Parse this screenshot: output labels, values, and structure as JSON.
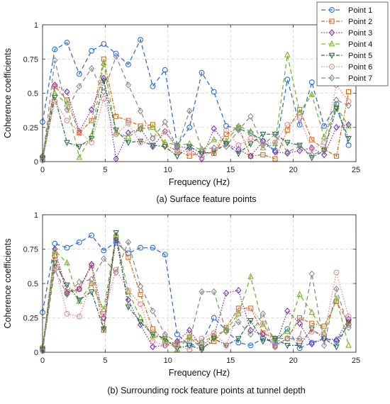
{
  "chart_data": [
    {
      "type": "line",
      "caption": "(a) Surface feature points",
      "xlabel": "Frequency (Hz)",
      "ylabel": "Coherence coefficients",
      "xlim": [
        0,
        25
      ],
      "ylim": [
        0,
        1
      ],
      "xticks": [
        "0",
        "5",
        "10",
        "15",
        "20",
        "25"
      ],
      "yticks": [
        "0",
        "0.25",
        "0.5",
        "0.75",
        "1"
      ],
      "grid": true,
      "legend": "top-right",
      "x": [
        0,
        0.98,
        1.95,
        2.93,
        3.91,
        4.88,
        5.86,
        6.84,
        7.81,
        8.79,
        9.77,
        10.74,
        11.72,
        12.7,
        13.67,
        14.65,
        15.63,
        16.6,
        17.58,
        18.55,
        19.53,
        20.51,
        21.48,
        22.46,
        23.44,
        24.41
      ],
      "series": [
        {
          "name": "Point 1",
          "color": "#2f6fd6",
          "dash": "6,4",
          "marker": "circle",
          "values": [
            0.29,
            0.82,
            0.87,
            0.64,
            0.81,
            0.86,
            0.79,
            0.71,
            0.89,
            0.55,
            0.67,
            0.12,
            0.25,
            0.65,
            0.51,
            0.26,
            0.24,
            0.21,
            0.15,
            0.08,
            0.6,
            0.27,
            0.58,
            0.26,
            0.42,
            0.12
          ]
        },
        {
          "name": "Point 2",
          "color": "#d46a1c",
          "dash": "5,2,1.5,2",
          "marker": "square",
          "values": [
            0.03,
            0.55,
            0.45,
            0.21,
            0.3,
            0.75,
            0.33,
            0.3,
            0.26,
            0.27,
            0.12,
            0.08,
            0.04,
            0.07,
            0.06,
            0.2,
            0.25,
            0.04,
            0.05,
            0.02,
            0.23,
            0.38,
            0.16,
            0.09,
            0.04,
            0.51
          ]
        },
        {
          "name": "Point 3",
          "color": "#7a2fb8",
          "dash": "1.5,2",
          "marker": "diamond",
          "values": [
            0.04,
            0.56,
            0.51,
            0.22,
            0.38,
            0.61,
            0.02,
            0.21,
            0.24,
            0.11,
            0.22,
            0.11,
            0.1,
            0.02,
            0.24,
            0.13,
            0.09,
            0.04,
            0.15,
            0.07,
            0.06,
            0.08,
            0.1,
            0.05,
            0.25,
            0.27
          ]
        },
        {
          "name": "Point 4",
          "color": "#7ab530",
          "dash": "6,4",
          "marker": "triangle-up",
          "values": [
            0.04,
            0.5,
            0.42,
            0.03,
            0.19,
            0.72,
            0.21,
            0.18,
            0.24,
            0.25,
            0.14,
            0.12,
            0.13,
            0.08,
            0.16,
            0.15,
            0.26,
            0.22,
            0.1,
            0.13,
            0.78,
            0.36,
            0.49,
            0.18,
            0.4,
            0.26
          ]
        },
        {
          "name": "Point 5",
          "color": "#2e6b4a",
          "dash": "5,2,1.5,2",
          "marker": "triangle-down",
          "values": [
            0.02,
            0.47,
            0.14,
            0.11,
            0.17,
            0.59,
            0.23,
            0.14,
            0.15,
            0.12,
            0.11,
            0.04,
            0.11,
            0.06,
            0.07,
            0.13,
            0.06,
            0.13,
            0.2,
            0.2,
            0.14,
            0.12,
            0.03,
            0.08,
            0.39,
            0.17
          ]
        },
        {
          "name": "Point 6",
          "color": "#e58a8a",
          "dash": "1.5,2",
          "marker": "circle",
          "values": [
            0.01,
            0.44,
            0.3,
            0.22,
            0.14,
            0.46,
            0.2,
            0.28,
            0.14,
            0.17,
            0.22,
            0.09,
            0.07,
            0.03,
            0.08,
            0.23,
            0.12,
            0.17,
            0.13,
            0.14,
            0.27,
            0.32,
            0.09,
            0.14,
            0.56,
            0.44
          ]
        },
        {
          "name": "Point 7",
          "color": "#8c8c8c",
          "dash": "6,4",
          "marker": "diamond",
          "values": [
            0.01,
            0.74,
            0.38,
            0.55,
            0.68,
            0.51,
            0.77,
            0.56,
            0.37,
            0.17,
            0.29,
            0.1,
            0.37,
            0.09,
            0.1,
            0.11,
            0.23,
            0.33,
            0.12,
            0.2,
            0.07,
            0.11,
            0.05,
            0.08,
            0.45,
            0.41
          ]
        }
      ]
    },
    {
      "type": "line",
      "caption": "(b) Surrounding rock feature points at tunnel depth",
      "xlabel": "Frequency (Hz)",
      "ylabel": "Coherence coefficients",
      "xlim": [
        0,
        25
      ],
      "ylim": [
        0,
        1
      ],
      "xticks": [
        "0",
        "5",
        "10",
        "15",
        "20",
        "25"
      ],
      "yticks": [
        "0",
        "0.25",
        "0.5",
        "0.75",
        "1"
      ],
      "grid": true,
      "x": [
        0,
        0.98,
        1.95,
        2.93,
        3.91,
        4.88,
        5.86,
        6.84,
        7.81,
        8.79,
        9.77,
        10.74,
        11.72,
        12.7,
        13.67,
        14.65,
        15.63,
        16.6,
        17.58,
        18.55,
        19.53,
        20.51,
        21.48,
        22.46,
        23.44,
        24.41
      ],
      "series": [
        {
          "name": "Point 1",
          "color": "#2f6fd6",
          "dash": "6,4",
          "marker": "circle",
          "values": [
            0.29,
            0.79,
            0.76,
            0.8,
            0.85,
            0.74,
            0.8,
            0.72,
            0.76,
            0.76,
            0.71,
            0.13,
            0.05,
            0.07,
            0.25,
            0.16,
            0.07,
            0.05,
            0.1,
            0.07,
            0.17,
            0.03,
            0.07,
            0.1,
            0.08,
            0.2
          ]
        },
        {
          "name": "Point 2",
          "color": "#d46a1c",
          "dash": "5,2,1.5,2",
          "marker": "square",
          "values": [
            0.03,
            0.7,
            0.44,
            0.46,
            0.63,
            0.16,
            0.84,
            0.69,
            0.42,
            0.17,
            0.08,
            0.06,
            0.11,
            0.03,
            0.08,
            0.18,
            0.32,
            0.32,
            0.14,
            0.1,
            0.1,
            0.25,
            0.21,
            0.19,
            0.37,
            0.21
          ]
        },
        {
          "name": "Point 3",
          "color": "#7a2fb8",
          "dash": "1.5,2",
          "marker": "diamond",
          "values": [
            0.02,
            0.75,
            0.43,
            0.46,
            0.64,
            0.25,
            0.82,
            0.38,
            0.2,
            0.04,
            0.05,
            0.08,
            0.16,
            0.04,
            0.12,
            0.43,
            0.45,
            0.16,
            0.13,
            0.04,
            0.3,
            0.21,
            0.06,
            0.1,
            0.09,
            0.24
          ]
        },
        {
          "name": "Point 4",
          "color": "#7ab530",
          "dash": "6,4",
          "marker": "triangle-up",
          "values": [
            0.04,
            0.74,
            0.65,
            0.37,
            0.5,
            0.31,
            0.85,
            0.44,
            0.25,
            0.12,
            0.09,
            0.02,
            0.11,
            0.07,
            0.12,
            0.16,
            0.28,
            0.55,
            0.2,
            0.1,
            0.15,
            0.42,
            0.29,
            0.14,
            0.39,
            0.05
          ]
        },
        {
          "name": "Point 5",
          "color": "#2e6b4a",
          "dash": "5,2,1.5,2",
          "marker": "triangle-down",
          "values": [
            0.02,
            0.65,
            0.49,
            0.38,
            0.44,
            0.17,
            0.87,
            0.33,
            0.22,
            0.13,
            0.1,
            0.03,
            0.05,
            0.02,
            0.1,
            0.05,
            0.1,
            0.23,
            0.08,
            0.1,
            0.05,
            0.05,
            0.17,
            0.1,
            0.04,
            0.22
          ]
        },
        {
          "name": "Point 6",
          "color": "#e58a8a",
          "dash": "1.5,2",
          "marker": "circle",
          "values": [
            0.01,
            0.63,
            0.28,
            0.26,
            0.5,
            0.28,
            0.6,
            0.45,
            0.35,
            0.08,
            0.05,
            0.05,
            0.02,
            0.1,
            0.14,
            0.05,
            0.28,
            0.32,
            0.21,
            0.04,
            0.1,
            0.08,
            0.15,
            0.13,
            0.58,
            0.26
          ]
        },
        {
          "name": "Point 7",
          "color": "#8c8c8c",
          "dash": "6,4",
          "marker": "diamond",
          "values": [
            0.01,
            0.6,
            0.42,
            0.51,
            0.53,
            0.68,
            0.58,
            0.8,
            0.48,
            0.3,
            0.13,
            0.07,
            0.08,
            0.44,
            0.44,
            0.15,
            0.22,
            0.13,
            0.28,
            0.05,
            0.1,
            0.1,
            0.57,
            0.05,
            0.46,
            0.18
          ]
        }
      ]
    }
  ]
}
